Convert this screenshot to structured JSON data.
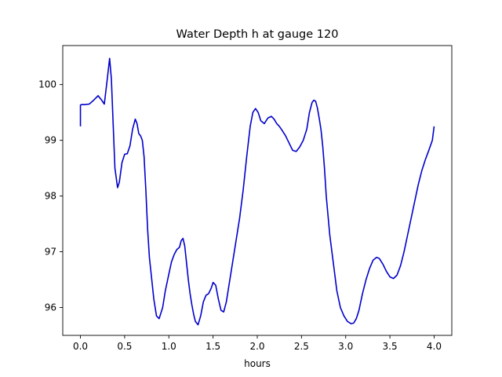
{
  "chart_data": {
    "type": "line",
    "title": "Water Depth h at gauge 120",
    "xlabel": "hours",
    "ylabel": "",
    "xlim": [
      -0.2,
      4.2
    ],
    "ylim": [
      95.5,
      100.7
    ],
    "xticks": [
      0.0,
      0.5,
      1.0,
      1.5,
      2.0,
      2.5,
      3.0,
      3.5,
      4.0
    ],
    "xtick_labels": [
      "0.0",
      "0.5",
      "1.0",
      "1.5",
      "2.0",
      "2.5",
      "3.0",
      "3.5",
      "4.0"
    ],
    "yticks": [
      96,
      97,
      98,
      99,
      100
    ],
    "ytick_labels": [
      "96",
      "97",
      "98",
      "99",
      "100"
    ],
    "grid": false,
    "colors": {
      "line": "#0000cc",
      "axes": "#000000",
      "background": "#ffffff"
    },
    "series": [
      {
        "x": [
          0.0,
          0.0,
          0.01,
          0.05,
          0.1,
          0.15,
          0.2,
          0.24,
          0.27,
          0.3,
          0.33,
          0.35,
          0.37,
          0.39,
          0.42,
          0.44,
          0.47,
          0.5,
          0.53,
          0.56,
          0.59,
          0.62,
          0.64,
          0.66,
          0.68,
          0.7,
          0.72,
          0.74,
          0.76,
          0.78,
          0.8,
          0.83,
          0.86,
          0.89,
          0.93,
          0.96,
          1.0,
          1.03,
          1.06,
          1.09,
          1.12,
          1.14,
          1.16,
          1.18,
          1.2,
          1.22,
          1.24,
          1.26,
          1.28,
          1.3,
          1.33,
          1.36,
          1.39,
          1.42,
          1.45,
          1.48,
          1.5,
          1.53,
          1.56,
          1.59,
          1.62,
          1.65,
          1.68,
          1.72,
          1.76,
          1.8,
          1.84,
          1.88,
          1.92,
          1.95,
          1.98,
          2.01,
          2.04,
          2.08,
          2.12,
          2.16,
          2.19,
          2.22,
          2.25,
          2.28,
          2.32,
          2.36,
          2.4,
          2.44,
          2.48,
          2.52,
          2.56,
          2.59,
          2.62,
          2.64,
          2.66,
          2.68,
          2.7,
          2.72,
          2.74,
          2.76,
          2.78,
          2.82,
          2.86,
          2.9,
          2.94,
          2.98,
          3.02,
          3.06,
          3.09,
          3.12,
          3.15,
          3.19,
          3.23,
          3.27,
          3.31,
          3.35,
          3.38,
          3.42,
          3.46,
          3.5,
          3.54,
          3.58,
          3.62,
          3.66,
          3.7,
          3.74,
          3.78,
          3.82,
          3.86,
          3.9,
          3.94,
          3.98,
          4.0
        ],
        "y": [
          99.25,
          99.63,
          99.64,
          99.64,
          99.65,
          99.72,
          99.8,
          99.72,
          99.65,
          100.05,
          100.47,
          100.1,
          99.3,
          98.5,
          98.15,
          98.25,
          98.6,
          98.75,
          98.76,
          98.9,
          99.2,
          99.38,
          99.3,
          99.12,
          99.08,
          99.0,
          98.7,
          98.1,
          97.4,
          96.9,
          96.6,
          96.15,
          95.85,
          95.8,
          96.0,
          96.3,
          96.6,
          96.82,
          96.95,
          97.04,
          97.08,
          97.2,
          97.24,
          97.1,
          96.8,
          96.5,
          96.25,
          96.05,
          95.88,
          95.75,
          95.69,
          95.85,
          96.1,
          96.22,
          96.25,
          96.35,
          96.45,
          96.4,
          96.15,
          95.95,
          95.92,
          96.1,
          96.4,
          96.8,
          97.2,
          97.6,
          98.1,
          98.7,
          99.25,
          99.5,
          99.57,
          99.5,
          99.35,
          99.3,
          99.4,
          99.43,
          99.38,
          99.3,
          99.25,
          99.18,
          99.08,
          98.95,
          98.82,
          98.8,
          98.88,
          99.0,
          99.2,
          99.5,
          99.68,
          99.72,
          99.7,
          99.58,
          99.4,
          99.2,
          98.9,
          98.5,
          98.0,
          97.3,
          96.8,
          96.3,
          96.0,
          95.85,
          95.75,
          95.71,
          95.72,
          95.8,
          95.95,
          96.25,
          96.5,
          96.7,
          96.85,
          96.9,
          96.88,
          96.78,
          96.65,
          96.55,
          96.52,
          96.58,
          96.75,
          97.0,
          97.3,
          97.6,
          97.9,
          98.2,
          98.45,
          98.65,
          98.82,
          99.0,
          99.25
        ]
      }
    ]
  }
}
